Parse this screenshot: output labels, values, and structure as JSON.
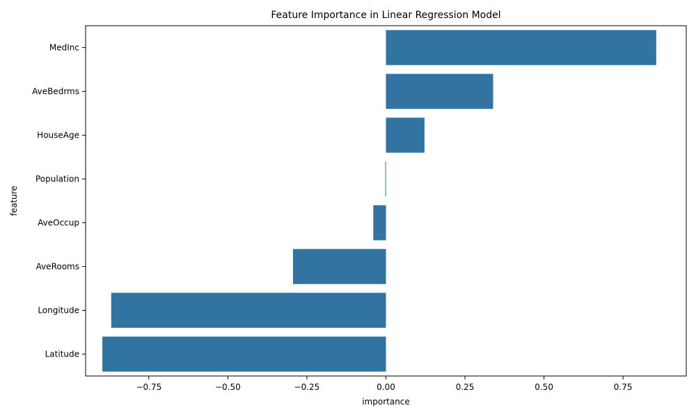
{
  "chart_data": {
    "type": "bar",
    "orientation": "horizontal",
    "title": "Feature Importance in Linear Regression Model",
    "xlabel": "importance",
    "ylabel": "feature",
    "categories": [
      "MedInc",
      "AveBedrms",
      "HouseAge",
      "Population",
      "AveOccup",
      "AveRooms",
      "Longitude",
      "Latitude"
    ],
    "values": [
      0.855,
      0.339,
      0.122,
      -0.002,
      -0.04,
      -0.294,
      -0.869,
      -0.897
    ],
    "xlim": [
      -0.95,
      0.95
    ],
    "xticks": [
      -0.75,
      -0.5,
      -0.25,
      0.0,
      0.25,
      0.5,
      0.75
    ],
    "xtick_labels": [
      "−0.75",
      "−0.50",
      "−0.25",
      "0.00",
      "0.25",
      "0.50",
      "0.75"
    ],
    "bar_color": "#3274a1",
    "grid": false,
    "legend": "none"
  }
}
